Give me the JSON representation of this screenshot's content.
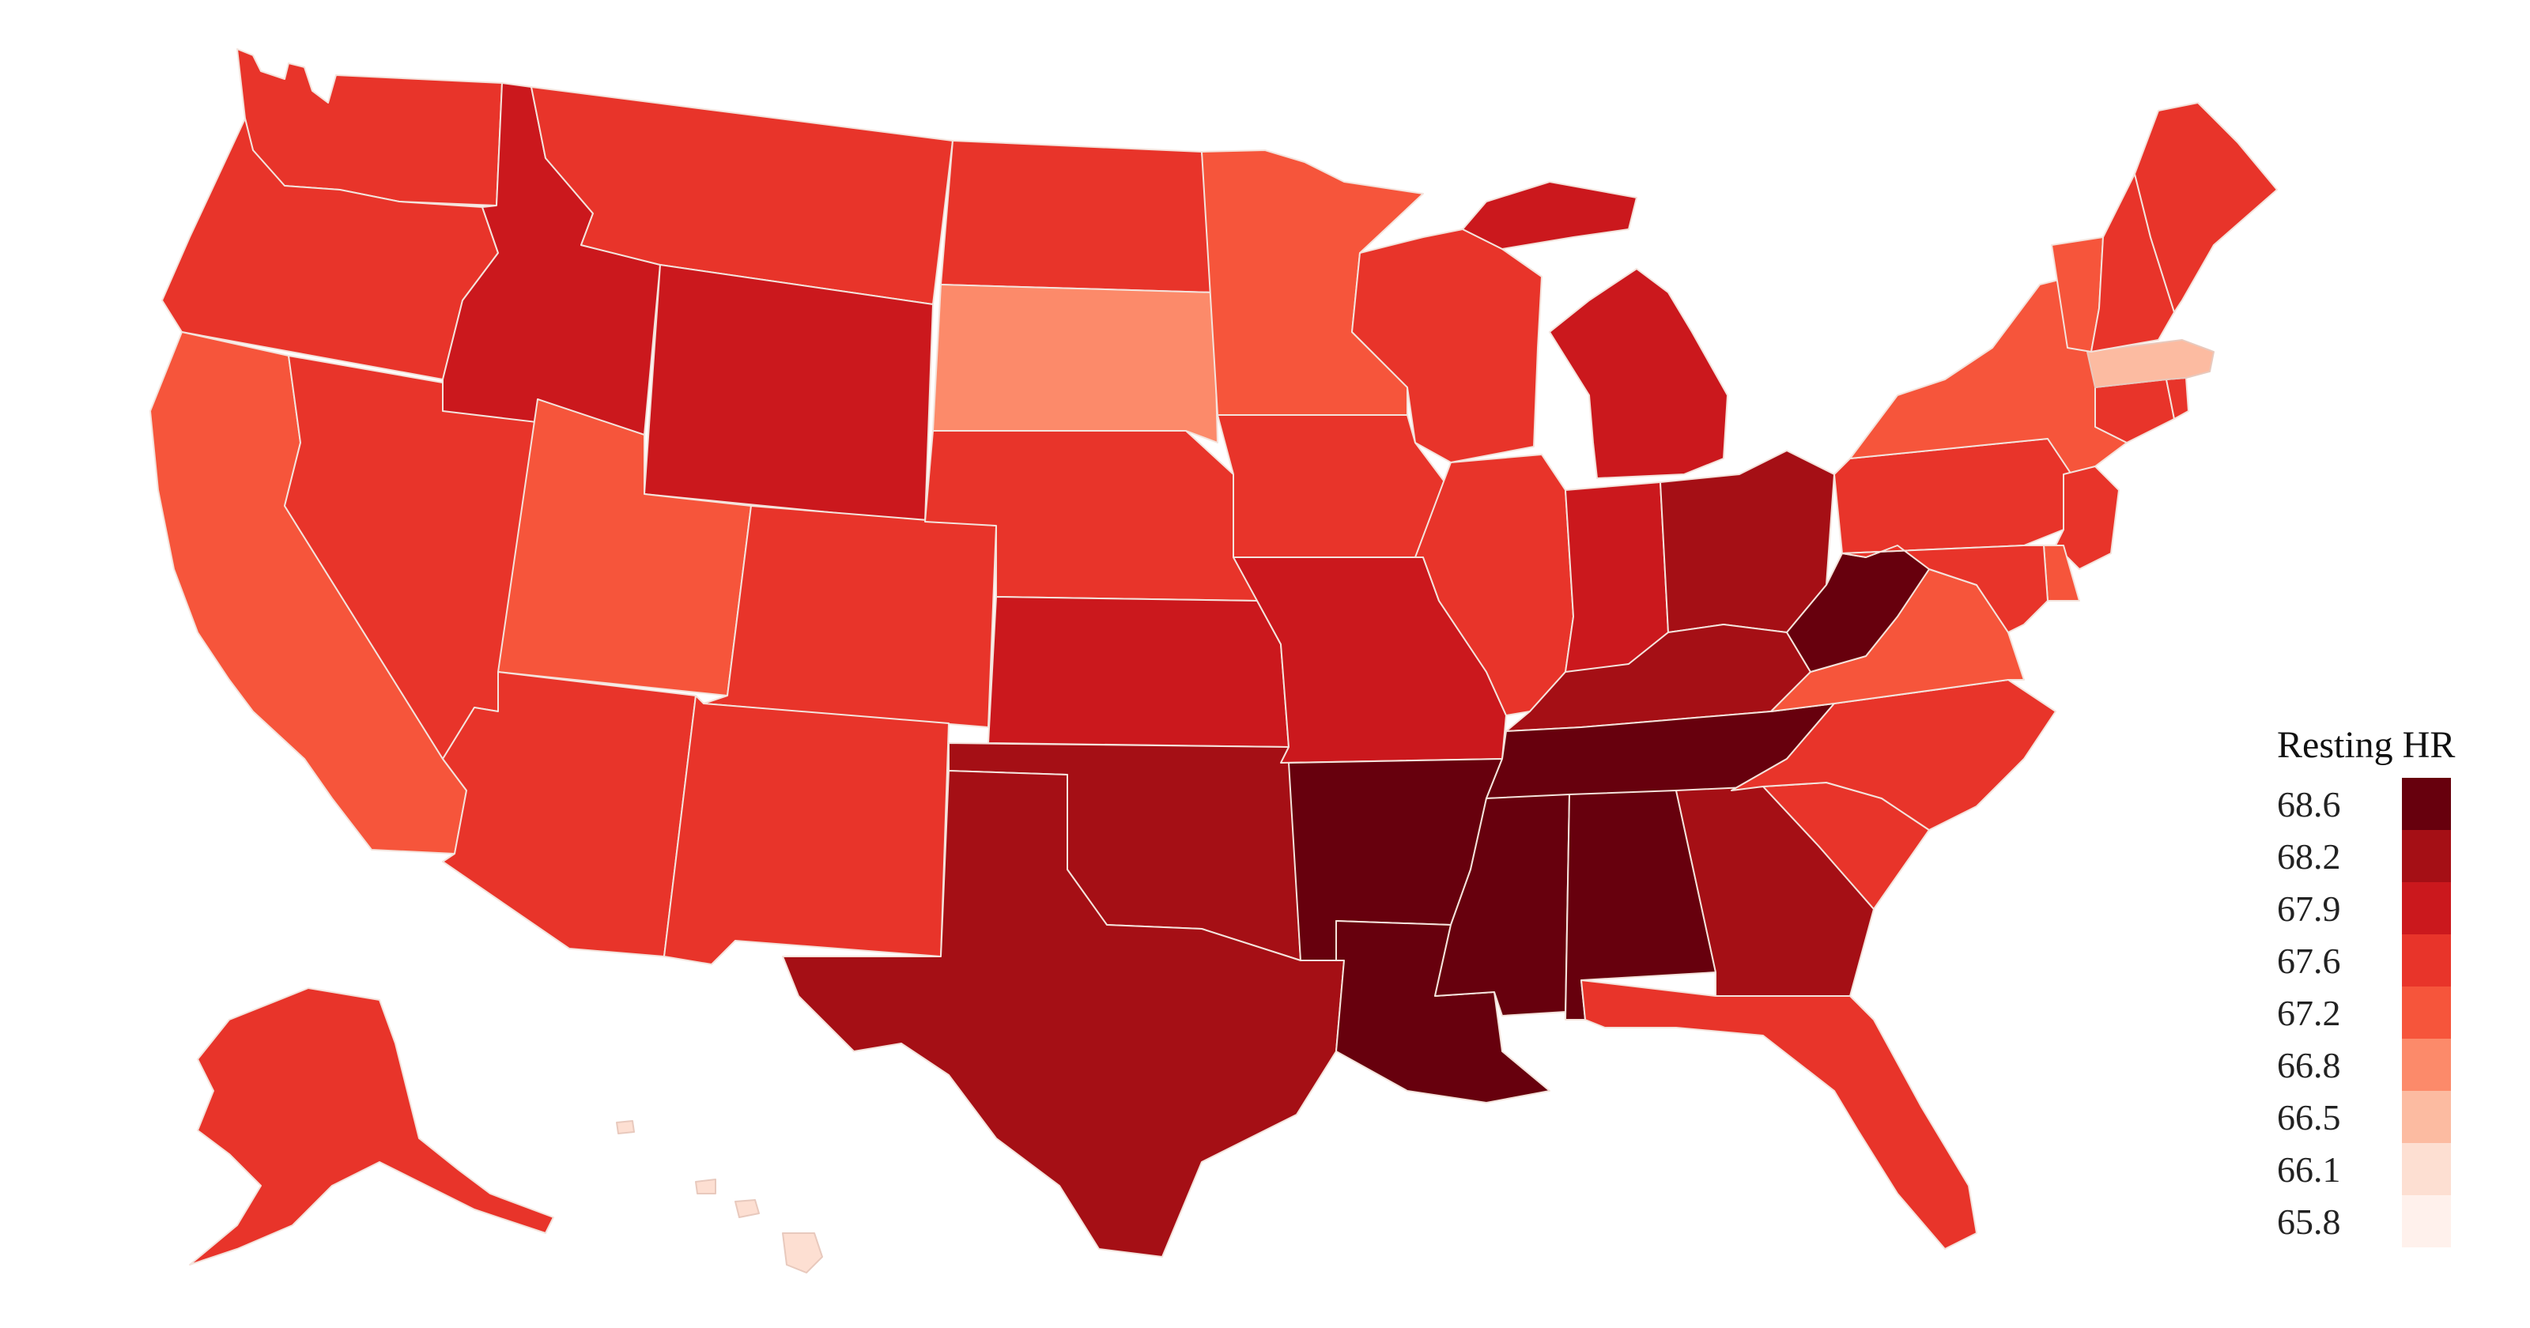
{
  "legend": {
    "title": "Resting HR",
    "stops": [
      {
        "label": "68.6",
        "color": "#67000d"
      },
      {
        "label": "68.2",
        "color": "#a50f15"
      },
      {
        "label": "67.9",
        "color": "#cb181d"
      },
      {
        "label": "67.6",
        "color": "#e8342a"
      },
      {
        "label": "67.2",
        "color": "#f6553b"
      },
      {
        "label": "66.8",
        "color": "#fc8a6a"
      },
      {
        "label": "66.5",
        "color": "#fcbba1"
      },
      {
        "label": "66.1",
        "color": "#fddfd2"
      },
      {
        "label": "65.8",
        "color": "#fff1ec"
      }
    ]
  },
  "map_data": {
    "metric": "Resting HR",
    "states": [
      {
        "code": "WA",
        "value": 67.4
      },
      {
        "code": "OR",
        "value": 67.6
      },
      {
        "code": "CA",
        "value": 67.2
      },
      {
        "code": "NV",
        "value": 67.6
      },
      {
        "code": "ID",
        "value": 67.9
      },
      {
        "code": "MT",
        "value": 67.6
      },
      {
        "code": "WY",
        "value": 67.9
      },
      {
        "code": "UT",
        "value": 67.2
      },
      {
        "code": "AZ",
        "value": 67.6
      },
      {
        "code": "CO",
        "value": 67.6
      },
      {
        "code": "NM",
        "value": 67.6
      },
      {
        "code": "ND",
        "value": 67.6
      },
      {
        "code": "SD",
        "value": 66.8
      },
      {
        "code": "NE",
        "value": 67.7
      },
      {
        "code": "KS",
        "value": 67.9
      },
      {
        "code": "OK",
        "value": 68.2
      },
      {
        "code": "TX",
        "value": 68.2
      },
      {
        "code": "MN",
        "value": 67.2
      },
      {
        "code": "IA",
        "value": 67.6
      },
      {
        "code": "MO",
        "value": 67.9
      },
      {
        "code": "AR",
        "value": 68.6
      },
      {
        "code": "LA",
        "value": 68.6
      },
      {
        "code": "WI",
        "value": 67.6
      },
      {
        "code": "IL",
        "value": 67.6
      },
      {
        "code": "MI",
        "value": 67.9
      },
      {
        "code": "IN",
        "value": 67.9
      },
      {
        "code": "OH",
        "value": 68.2
      },
      {
        "code": "KY",
        "value": 68.2
      },
      {
        "code": "TN",
        "value": 68.6
      },
      {
        "code": "MS",
        "value": 68.6
      },
      {
        "code": "AL",
        "value": 68.6
      },
      {
        "code": "GA",
        "value": 68.2
      },
      {
        "code": "FL",
        "value": 67.7
      },
      {
        "code": "SC",
        "value": 67.6
      },
      {
        "code": "NC",
        "value": 67.6
      },
      {
        "code": "VA",
        "value": 67.2
      },
      {
        "code": "WV",
        "value": 68.6
      },
      {
        "code": "PA",
        "value": 67.6
      },
      {
        "code": "NY",
        "value": 67.2
      },
      {
        "code": "NJ",
        "value": 67.6
      },
      {
        "code": "DE",
        "value": 67.2
      },
      {
        "code": "MD",
        "value": 67.6
      },
      {
        "code": "CT",
        "value": 67.6
      },
      {
        "code": "RI",
        "value": 67.6
      },
      {
        "code": "MA",
        "value": 66.6
      },
      {
        "code": "VT",
        "value": 67.2
      },
      {
        "code": "NH",
        "value": 67.6
      },
      {
        "code": "ME",
        "value": 67.6
      },
      {
        "code": "AK",
        "value": 67.6
      },
      {
        "code": "HI",
        "value": 66.1
      }
    ]
  }
}
